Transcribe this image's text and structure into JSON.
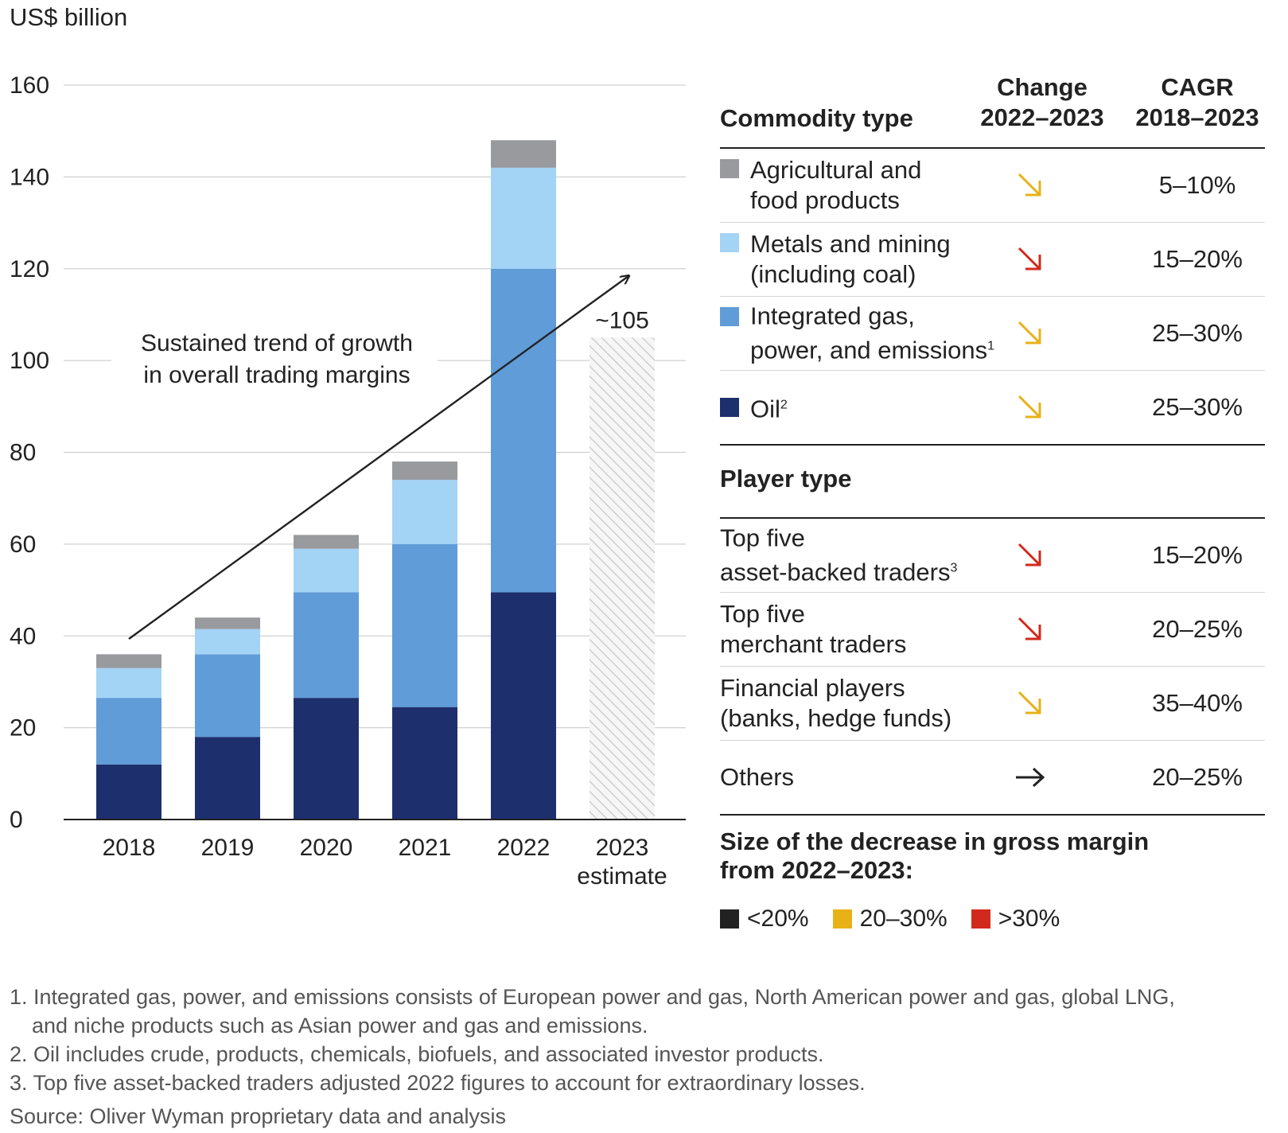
{
  "chart_data": {
    "type": "bar",
    "stacked": true,
    "unit_label": "US$ billion",
    "ylim": [
      0,
      160
    ],
    "yticks": [
      0,
      20,
      40,
      60,
      80,
      100,
      120,
      140,
      160
    ],
    "categories": [
      "2018",
      "2019",
      "2020",
      "2021",
      "2022",
      "2023 estimate"
    ],
    "series": [
      {
        "name": "Oil",
        "color": "#1e2f6e",
        "values": [
          12,
          18,
          26.5,
          24.5,
          49.5,
          null
        ]
      },
      {
        "name": "Integrated gas, power, and emissions",
        "color": "#5f9cd8",
        "values": [
          14.5,
          18,
          23,
          35.5,
          70.5,
          null
        ]
      },
      {
        "name": "Metals and mining (including coal)",
        "color": "#a3d3f5",
        "values": [
          6.5,
          5.5,
          9.5,
          14,
          22,
          null
        ]
      },
      {
        "name": "Agricultural and food products",
        "color": "#999a9e",
        "values": [
          3,
          2.5,
          3,
          4,
          6,
          null
        ]
      }
    ],
    "estimate": {
      "category": "2023 estimate",
      "value": 105,
      "label": "~105"
    },
    "annotation": {
      "line1": "Sustained trend of growth",
      "line2": "in overall trading margins"
    }
  },
  "table": {
    "header": {
      "commodity": "Commodity type",
      "change_l1": "Change",
      "change_l2": "2022–2023",
      "cagr_l1": "CAGR",
      "cagr_l2": "2018–2023"
    },
    "commodities": [
      {
        "line1": "Agricultural and",
        "line2": "food products",
        "sup": "",
        "swatch": "#999a9e",
        "arrow": "diag",
        "arrow_color": "#e8b118",
        "cagr": "5–10%"
      },
      {
        "line1": "Metals and mining",
        "line2": "(including coal)",
        "sup": "",
        "swatch": "#a3d3f5",
        "arrow": "diag",
        "arrow_color": "#d12a1c",
        "cagr": "15–20%"
      },
      {
        "line1": "Integrated gas,",
        "line2": "power, and emissions",
        "sup": "1",
        "swatch": "#5f9cd8",
        "arrow": "diag",
        "arrow_color": "#e8b118",
        "cagr": "25–30%"
      },
      {
        "line1": "Oil",
        "line2": "",
        "sup": "2",
        "swatch": "#1e2f6e",
        "arrow": "diag",
        "arrow_color": "#e8b118",
        "cagr": "25–30%"
      }
    ],
    "player_header": "Player type",
    "players": [
      {
        "line1": "Top five",
        "line2": "asset-backed traders",
        "sup": "3",
        "arrow": "diag",
        "arrow_color": "#d12a1c",
        "cagr": "15–20%"
      },
      {
        "line1": "Top five",
        "line2": "merchant traders",
        "sup": "",
        "arrow": "diag",
        "arrow_color": "#d12a1c",
        "cagr": "20–25%"
      },
      {
        "line1": "Financial players",
        "line2": "(banks, hedge funds)",
        "sup": "",
        "arrow": "diag",
        "arrow_color": "#e8b118",
        "cagr": "35–40%"
      },
      {
        "line1": "Others",
        "line2": "",
        "sup": "",
        "arrow": "right",
        "arrow_color": "#222222",
        "cagr": "20–25%"
      }
    ]
  },
  "size_legend": {
    "title_l1": "Size of the decrease in gross margin",
    "title_l2": "from 2022–2023:",
    "items": [
      {
        "label": "<20%",
        "color": "#222222"
      },
      {
        "label": "20–30%",
        "color": "#e8b118"
      },
      {
        "label": ">30%",
        "color": "#d12a1c"
      }
    ]
  },
  "footnotes": {
    "n1_l1": "1. Integrated gas, power, and emissions consists of European power and gas, North American power and gas, global LNG,",
    "n1_l2": "and niche products such as Asian power and gas and emissions.",
    "n2": "2. Oil includes crude, products, chemicals, biofuels, and associated investor products.",
    "n3": "3. Top five asset-backed traders adjusted 2022 figures to account for extraordinary losses.",
    "source": "Source: Oliver Wyman proprietary data and analysis"
  }
}
